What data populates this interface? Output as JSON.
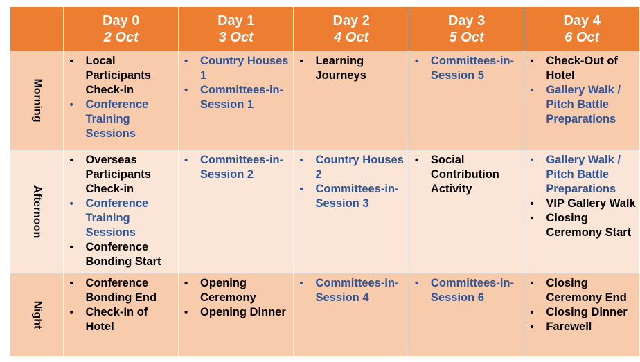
{
  "days": [
    {
      "name": "Day 0",
      "date": "2 Oct"
    },
    {
      "name": "Day 1",
      "date": "3 Oct"
    },
    {
      "name": "Day 2",
      "date": "4 Oct"
    },
    {
      "name": "Day 3",
      "date": "5 Oct"
    },
    {
      "name": "Day 4",
      "date": "6 Oct"
    }
  ],
  "periods": [
    {
      "label": "Morning",
      "cells": [
        [
          {
            "text": "Local Participants Check-in",
            "highlight": false
          },
          {
            "text": "Conference Training Sessions",
            "highlight": true
          }
        ],
        [
          {
            "text": "Country Houses 1",
            "highlight": true
          },
          {
            "text": "Committees-in-Session 1",
            "highlight": true
          }
        ],
        [
          {
            "text": "Learning Journeys",
            "highlight": false
          }
        ],
        [
          {
            "text": "Committees-in-Session 5",
            "highlight": true
          }
        ],
        [
          {
            "text": "Check-Out of Hotel",
            "highlight": false
          },
          {
            "text": "Gallery Walk / Pitch Battle Preparations",
            "highlight": true
          }
        ]
      ]
    },
    {
      "label": "Afternoon",
      "cells": [
        [
          {
            "text": "Overseas Participants Check-in",
            "highlight": false
          },
          {
            "text": "Conference Training Sessions",
            "highlight": true
          },
          {
            "text": "Conference Bonding Start",
            "highlight": false
          }
        ],
        [
          {
            "text": "Committees-in-Session 2",
            "highlight": true
          }
        ],
        [
          {
            "text": "Country Houses 2",
            "highlight": true
          },
          {
            "text": "Committees-in-Session 3",
            "highlight": true
          }
        ],
        [
          {
            "text": "Social Contribution Activity",
            "highlight": false
          }
        ],
        [
          {
            "text": "Gallery Walk / Pitch Battle Preparations",
            "highlight": true
          },
          {
            "text": "VIP Gallery Walk",
            "highlight": false
          },
          {
            "text": "Closing Ceremony Start",
            "highlight": false
          }
        ]
      ]
    },
    {
      "label": "Night",
      "cells": [
        [
          {
            "text": "Conference Bonding End",
            "highlight": false
          },
          {
            "text": "Check-In of Hotel",
            "highlight": false
          }
        ],
        [
          {
            "text": "Opening Ceremony",
            "highlight": false
          },
          {
            "text": "Opening Dinner",
            "highlight": false
          }
        ],
        [
          {
            "text": "Committees-in-Session 4",
            "highlight": true
          }
        ],
        [
          {
            "text": "Committees-in-Session 6",
            "highlight": true
          }
        ],
        [
          {
            "text": "Closing Ceremony End",
            "highlight": false
          },
          {
            "text": "Closing Dinner",
            "highlight": false
          },
          {
            "text": "Farewell",
            "highlight": false
          }
        ]
      ]
    }
  ],
  "colors": {
    "header_bg": "#ed7d31",
    "row_dark_bg": "#f8cbad",
    "row_light_bg": "#fbe5d6",
    "highlight_text": "#2f5597"
  }
}
